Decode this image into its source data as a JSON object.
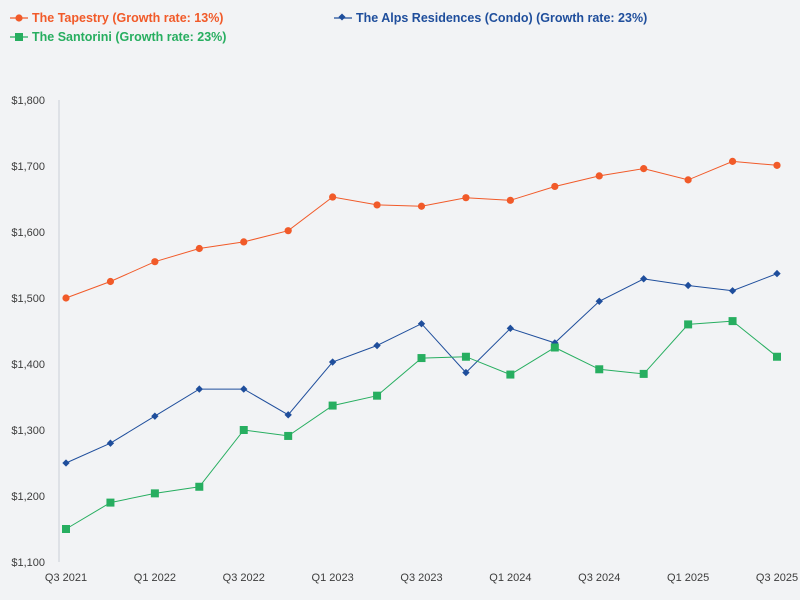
{
  "chart_data": {
    "type": "line",
    "title": "",
    "xlabel": "",
    "ylabel": "",
    "ylim": [
      1100,
      1800
    ],
    "yticks": [
      "$1,100",
      "$1,200",
      "$1,300",
      "$1,400",
      "$1,500",
      "$1,600",
      "$1,700",
      "$1,800"
    ],
    "ytick_values": [
      1100,
      1200,
      1300,
      1400,
      1500,
      1600,
      1700,
      1800
    ],
    "x": [
      "Q3 2021",
      "Q4 2021",
      "Q1 2022",
      "Q2 2022",
      "Q3 2022",
      "Q4 2022",
      "Q1 2023",
      "Q2 2023",
      "Q3 2023",
      "Q4 2023",
      "Q1 2024",
      "Q2 2024",
      "Q3 2024",
      "Q4 2024",
      "Q1 2025",
      "Q2 2025",
      "Q3 2025"
    ],
    "xtick_labels": [
      "Q3 2021",
      "",
      "Q1 2022",
      "",
      "Q3 2022",
      "",
      "Q1 2023",
      "",
      "Q3 2023",
      "",
      "Q1 2024",
      "",
      "Q3 2024",
      "",
      "Q1 2025",
      "",
      "Q3 2025"
    ],
    "legend_position": "top-left",
    "series": [
      {
        "name": "The Tapestry (Growth rate: 13%)",
        "color": "#f15a29",
        "marker": "circle",
        "values": [
          1500,
          1525,
          1555,
          1575,
          1585,
          1602,
          1653,
          1641,
          1639,
          1652,
          1648,
          1669,
          1685,
          1696,
          1679,
          1707,
          1701
        ]
      },
      {
        "name": "The Alps Residences (Condo) (Growth rate: 23%)",
        "color": "#1f4e9c",
        "marker": "diamond",
        "values": [
          1250,
          1280,
          1321,
          1362,
          1362,
          1323,
          1403,
          1428,
          1461,
          1387,
          1454,
          1432,
          1495,
          1529,
          1519,
          1511,
          1537
        ]
      },
      {
        "name": "The Santorini (Growth rate: 23%)",
        "color": "#27ae60",
        "marker": "square",
        "values": [
          1150,
          1190,
          1204,
          1214,
          1300,
          1291,
          1337,
          1352,
          1409,
          1411,
          1384,
          1425,
          1392,
          1385,
          1460,
          1465,
          1411
        ]
      }
    ]
  }
}
